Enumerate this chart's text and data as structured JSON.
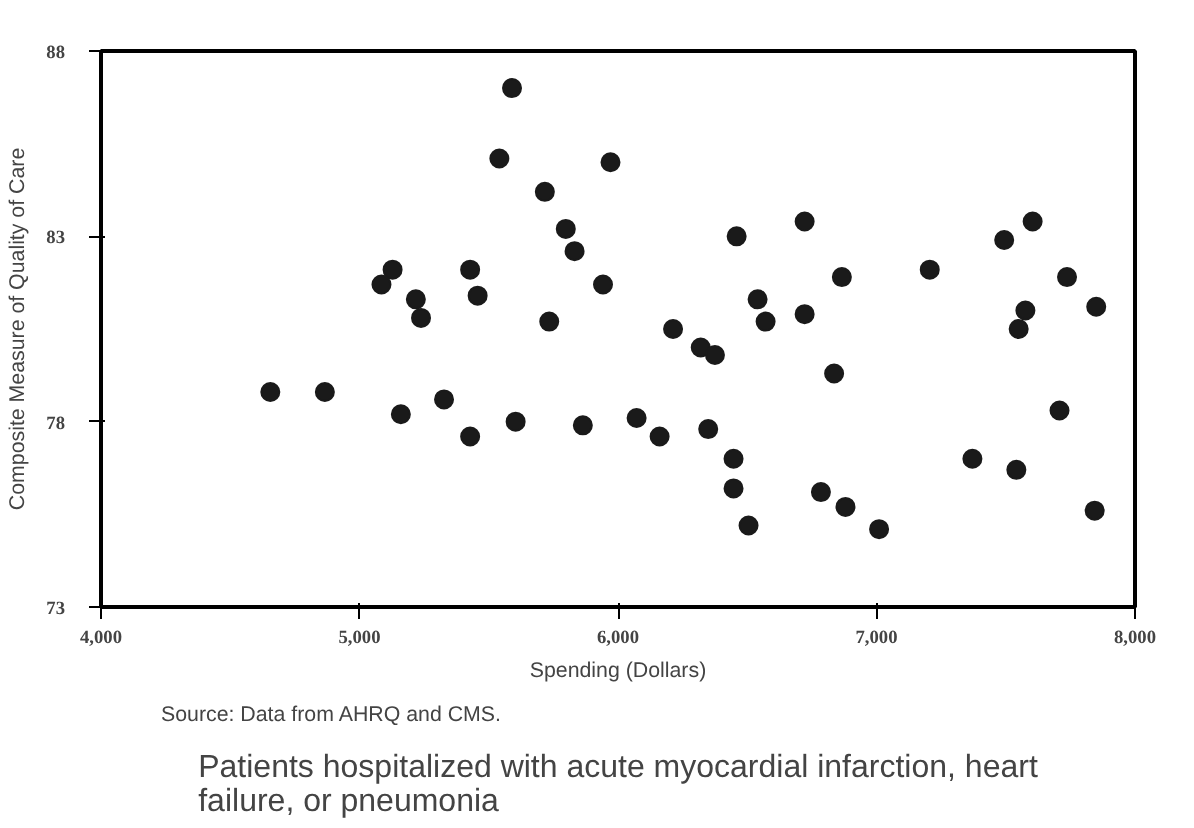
{
  "chart_data": {
    "type": "scatter",
    "title": "Patients hospitalized with acute myocardial infarction, heart failure, or pneumonia",
    "xlabel": "Spending (Dollars)",
    "ylabel": "Composite Measure of Quality of Care",
    "annotations": [
      "Source: Data from AHRQ and CMS."
    ],
    "x": [
      5590,
      5541,
      5971,
      5717,
      5798,
      5832,
      5942,
      5734,
      5128,
      5085,
      5218,
      5238,
      5428,
      5457,
      4655,
      4866,
      5160,
      5327,
      5428,
      5604,
      5864,
      6459,
      6722,
      6866,
      7206,
      7494,
      7604,
      7737,
      7850,
      7576,
      7550,
      6540,
      6571,
      6722,
      6213,
      6320,
      6375,
      6836,
      7708,
      6072,
      6161,
      6349,
      6447,
      6447,
      6505,
      6785,
      6880,
      7010,
      7371,
      7541,
      7844
    ],
    "values": [
      87.0,
      85.1,
      85.0,
      84.2,
      83.2,
      82.6,
      81.7,
      80.7,
      82.1,
      81.7,
      81.3,
      80.8,
      82.1,
      81.4,
      78.8,
      78.8,
      78.2,
      78.6,
      77.6,
      78.0,
      77.9,
      83.0,
      83.4,
      81.9,
      82.1,
      82.9,
      83.4,
      81.9,
      81.1,
      81.0,
      80.5,
      81.3,
      80.7,
      80.9,
      80.5,
      80.0,
      79.8,
      79.3,
      78.3,
      78.1,
      77.6,
      77.8,
      77.0,
      76.2,
      75.2,
      76.1,
      75.7,
      75.1,
      77.0,
      76.7,
      75.6
    ],
    "color": "#1a1a1a",
    "marker": "circle",
    "grid": false,
    "xlim": [
      4000,
      8000
    ],
    "ylim": [
      73,
      88
    ],
    "xticks": [
      {
        "value": 4000,
        "label": "4,000"
      },
      {
        "value": 5000,
        "label": "5,000"
      },
      {
        "value": 6000,
        "label": "6,000"
      },
      {
        "value": 7000,
        "label": "7,000"
      },
      {
        "value": 8000,
        "label": "8,000"
      }
    ],
    "yticks": [
      73,
      78,
      83,
      88
    ]
  }
}
